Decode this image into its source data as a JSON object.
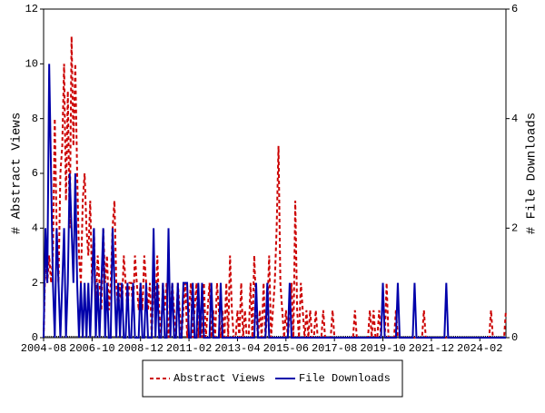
{
  "chart_data": {
    "type": "line",
    "y_label": "# Abstract Views",
    "y2_label": "# File Downloads",
    "categories": [
      "2004-08",
      null,
      null,
      null,
      null,
      null,
      null,
      null,
      null,
      null,
      null,
      null,
      null,
      null,
      null,
      null,
      null,
      null,
      null,
      null,
      null,
      null,
      null,
      null,
      null,
      null,
      "2006-10",
      null,
      null,
      null,
      null,
      null,
      null,
      null,
      null,
      null,
      null,
      null,
      null,
      null,
      null,
      null,
      null,
      null,
      null,
      null,
      null,
      null,
      null,
      null,
      null,
      null,
      "2008-12",
      null,
      null,
      null,
      null,
      null,
      null,
      null,
      null,
      null,
      null,
      null,
      null,
      null,
      null,
      null,
      null,
      null,
      null,
      null,
      null,
      null,
      null,
      null,
      null,
      null,
      "2011-02",
      null,
      null,
      null,
      null,
      null,
      null,
      null,
      null,
      null,
      null,
      null,
      null,
      null,
      null,
      null,
      null,
      null,
      null,
      null,
      null,
      null,
      null,
      null,
      null,
      null,
      "2013-04",
      null,
      null,
      null,
      null,
      null,
      null,
      null,
      null,
      null,
      null,
      null,
      null,
      null,
      null,
      null,
      null,
      null,
      null,
      null,
      null,
      null,
      null,
      null,
      null,
      null,
      "2015-06",
      null,
      null,
      null,
      null,
      null,
      null,
      null,
      null,
      null,
      null,
      null,
      null,
      null,
      null,
      null,
      null,
      null,
      null,
      null,
      null,
      null,
      null,
      null,
      null,
      null,
      "2017-08",
      null,
      null,
      null,
      null,
      null,
      null,
      null,
      null,
      null,
      null,
      null,
      null,
      null,
      null,
      null,
      null,
      null,
      null,
      null,
      null,
      null,
      null,
      null,
      null,
      null,
      "2019-10",
      null,
      null,
      null,
      null,
      null,
      null,
      null,
      null,
      null,
      null,
      null,
      null,
      null,
      null,
      null,
      null,
      null,
      null,
      null,
      null,
      null,
      null,
      null,
      null,
      null,
      "2021-12",
      null,
      null,
      null,
      null,
      null,
      null,
      null,
      null,
      null,
      null,
      null,
      null,
      null,
      null,
      null,
      null,
      null,
      null,
      null,
      null,
      null,
      null,
      null,
      null,
      null,
      "2024-02",
      null,
      null,
      null,
      null,
      null,
      null,
      null,
      null,
      null,
      null,
      null,
      null,
      null,
      null
    ],
    "series": [
      {
        "name": "Abstract Views",
        "color": "#cc0000",
        "dash": true,
        "values": [
          0,
          3,
          2,
          3,
          2,
          3,
          8,
          4,
          2,
          6,
          7,
          10,
          5,
          9,
          4,
          11,
          7,
          10,
          6,
          3,
          2,
          5,
          6,
          4,
          3,
          5,
          2,
          4,
          1,
          3,
          2,
          1,
          4,
          2,
          3,
          1,
          2,
          4,
          5,
          2,
          1,
          2,
          1,
          3,
          2,
          1,
          2,
          2,
          1,
          3,
          2,
          1,
          2,
          1,
          3,
          2,
          1,
          2,
          0,
          2,
          1,
          3,
          1,
          0,
          2,
          1,
          2,
          0,
          1,
          2,
          1,
          0,
          2,
          1,
          0,
          1,
          2,
          0,
          1,
          2,
          0,
          1,
          2,
          0,
          1,
          0,
          2,
          0,
          1,
          2,
          0,
          1,
          0,
          2,
          1,
          0,
          1,
          0,
          2,
          0,
          3,
          1,
          0,
          0,
          1,
          0,
          2,
          0,
          1,
          0,
          0,
          2,
          0,
          3,
          1,
          0,
          1,
          0,
          2,
          0,
          1,
          3,
          0,
          1,
          2,
          4,
          7,
          2,
          1,
          0,
          1,
          0,
          1,
          2,
          0,
          5,
          1,
          0,
          2,
          1,
          0,
          1,
          0,
          1,
          0,
          0,
          1,
          0,
          0,
          0,
          1,
          0,
          0,
          0,
          0,
          1,
          0,
          0,
          0,
          0,
          0,
          0,
          0,
          0,
          0,
          0,
          0,
          1,
          0,
          0,
          0,
          0,
          0,
          0,
          0,
          1,
          0,
          1,
          0,
          0,
          1,
          0,
          0,
          0,
          2,
          0,
          0,
          0,
          0,
          1,
          0,
          0,
          0,
          0,
          0,
          0,
          0,
          0,
          0,
          0,
          0,
          0,
          0,
          0,
          1,
          0,
          0,
          0,
          0,
          0,
          0,
          0,
          0,
          0,
          0,
          0,
          0,
          0,
          0,
          0,
          0,
          0,
          0,
          0,
          0,
          0,
          0,
          0,
          0,
          0,
          0,
          0,
          0,
          0,
          0,
          0,
          0,
          0,
          0,
          0,
          1,
          0,
          0,
          0,
          0,
          0,
          0,
          0,
          1
        ]
      },
      {
        "name": "File Downloads",
        "color": "#0000aa",
        "dash": false,
        "axis": "y2",
        "values": [
          0,
          2,
          1,
          5,
          3,
          1,
          0,
          2,
          1,
          0,
          1,
          2,
          0,
          1,
          3,
          2,
          1,
          3,
          1,
          0,
          1,
          0,
          1,
          0,
          1,
          0,
          1,
          2,
          0,
          1,
          0,
          1,
          2,
          0,
          1,
          0,
          0,
          2,
          1,
          0,
          1,
          0,
          1,
          0,
          0,
          1,
          0,
          0,
          1,
          0,
          0,
          0,
          1,
          0,
          0,
          1,
          0,
          0,
          0,
          2,
          0,
          1,
          0,
          0,
          1,
          0,
          0,
          2,
          0,
          1,
          0,
          0,
          1,
          0,
          0,
          1,
          1,
          1,
          0,
          0,
          1,
          0,
          0,
          1,
          0,
          1,
          0,
          0,
          0,
          0,
          1,
          0,
          0,
          0,
          0,
          1,
          0,
          0,
          0,
          0,
          0,
          0,
          0,
          0,
          0,
          0,
          0,
          0,
          0,
          0,
          0,
          0,
          0,
          0,
          1,
          0,
          0,
          0,
          0,
          0,
          1,
          0,
          0,
          0,
          0,
          0,
          0,
          0,
          0,
          0,
          0,
          0,
          1,
          0,
          0,
          0,
          0,
          0,
          0,
          0,
          0,
          0,
          0,
          0,
          0,
          0,
          0,
          0,
          0,
          0,
          0,
          0,
          0,
          0,
          0,
          0,
          0,
          0,
          0,
          0,
          0,
          0,
          0,
          0,
          0,
          0,
          0,
          0,
          0,
          0,
          0,
          0,
          0,
          0,
          0,
          0,
          0,
          0,
          0,
          0,
          0,
          0,
          1,
          0,
          0,
          0,
          0,
          0,
          0,
          0,
          1,
          0,
          0,
          0,
          0,
          0,
          0,
          0,
          0,
          1,
          0,
          0,
          0,
          0,
          0,
          0,
          0,
          0,
          0,
          0,
          0,
          0,
          0,
          0,
          0,
          0,
          1,
          0,
          0,
          0,
          0,
          0,
          0,
          0,
          0,
          0,
          0,
          0,
          0,
          0,
          0,
          0,
          0,
          0,
          0,
          0,
          0,
          0,
          0,
          0,
          0,
          0,
          0,
          0,
          0,
          0,
          0,
          0,
          0
        ]
      }
    ],
    "ylim": [
      0,
      12
    ],
    "yticks": [
      0,
      2,
      4,
      6,
      8,
      10,
      12
    ],
    "y2lim": [
      0,
      6
    ],
    "y2ticks": [
      0,
      2,
      4,
      6
    ],
    "legend": "bottom"
  }
}
